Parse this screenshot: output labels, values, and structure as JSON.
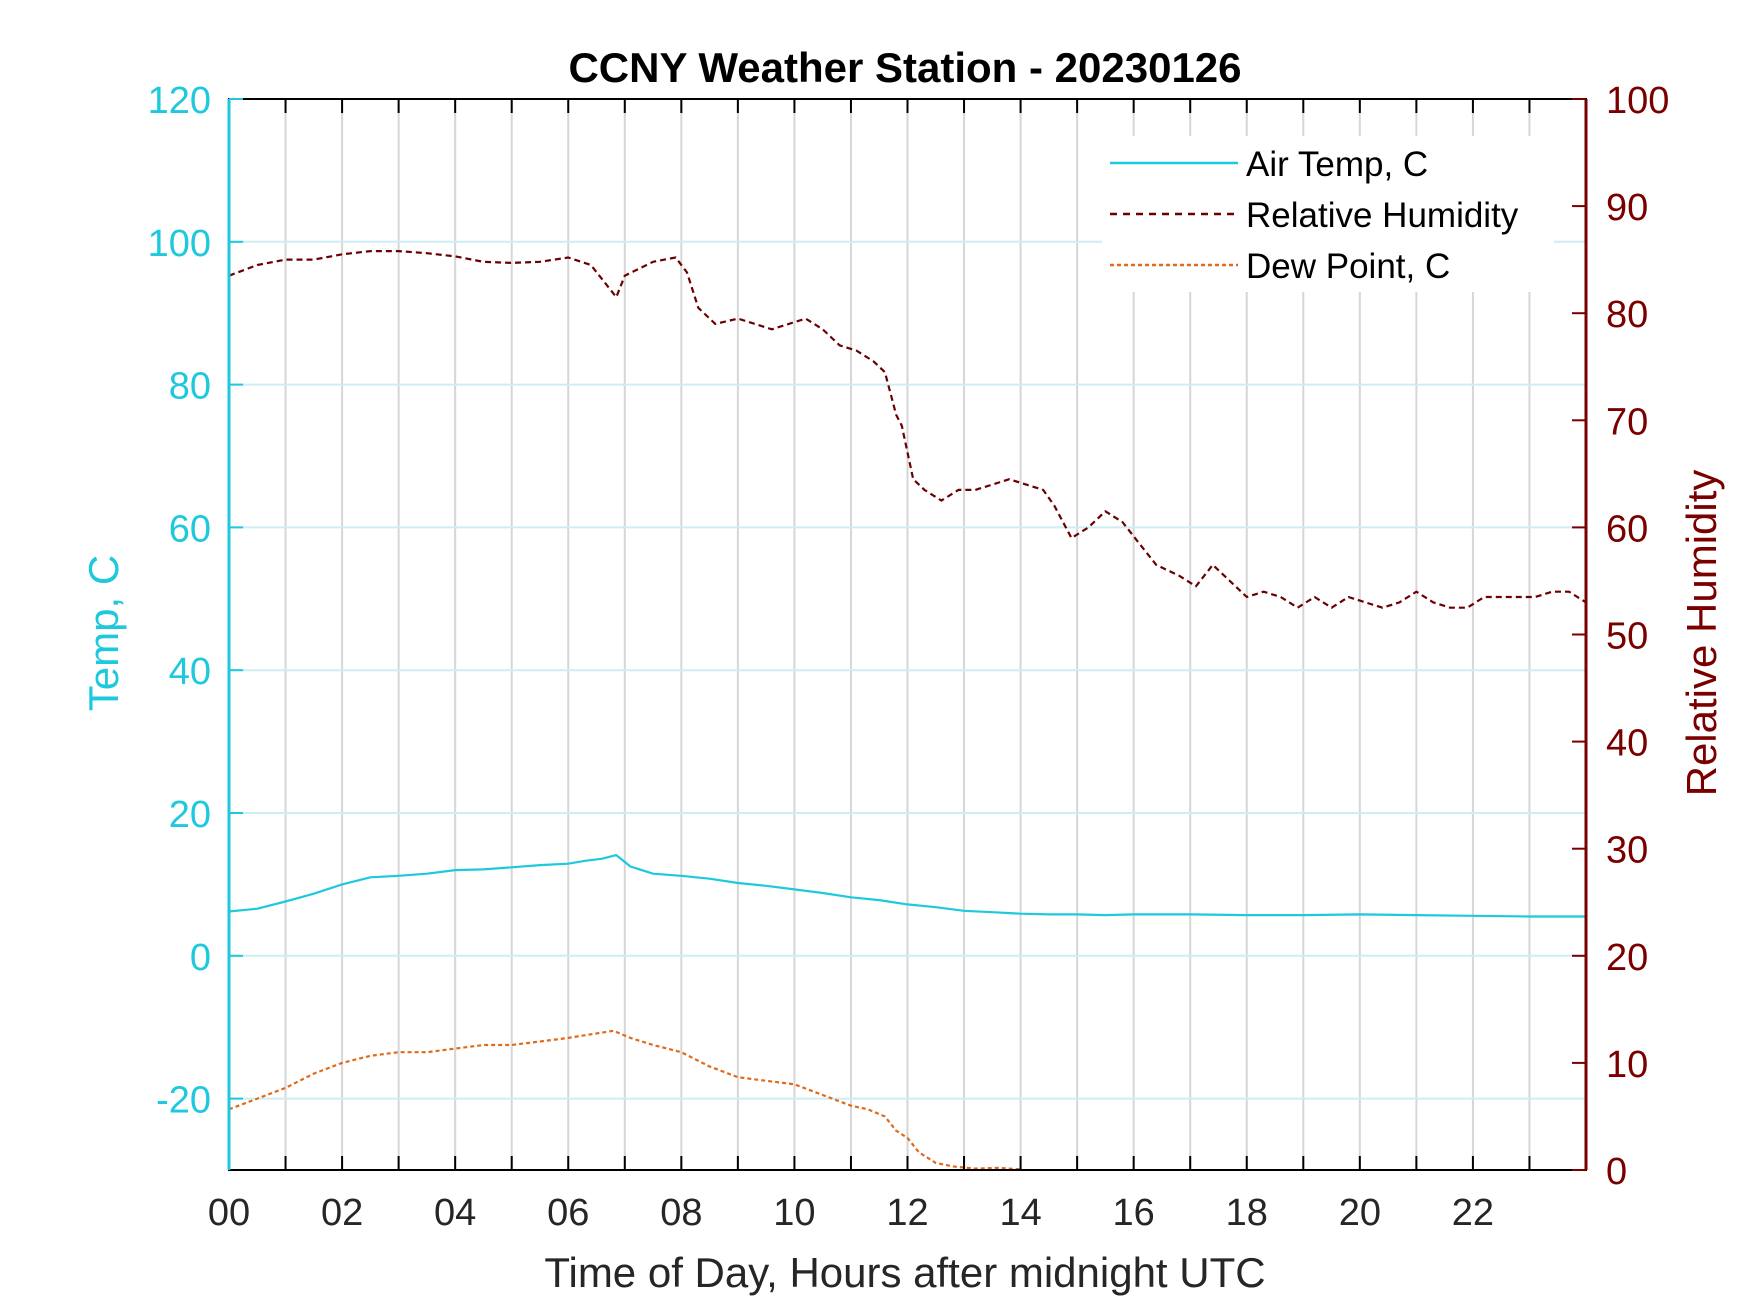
{
  "chart_data": {
    "type": "line",
    "title": "CCNY Weather Station - 20230126",
    "xlabel": "Time of Day, Hours after midnight UTC",
    "ylabel_left": "Temp, C",
    "ylabel_right": "Relative Humidity",
    "xlim": [
      0,
      24
    ],
    "ylim_left": [
      -30,
      120
    ],
    "ylim_right": [
      0,
      100
    ],
    "x_ticks": [
      0,
      2,
      4,
      6,
      8,
      10,
      12,
      14,
      16,
      18,
      20,
      22
    ],
    "x_tick_labels": [
      "00",
      "02",
      "04",
      "06",
      "08",
      "10",
      "12",
      "14",
      "16",
      "18",
      "20",
      "22"
    ],
    "y_left_ticks": [
      120,
      100,
      80,
      60,
      40,
      20,
      0,
      -20
    ],
    "y_right_ticks": [
      100,
      90,
      80,
      70,
      60,
      50,
      40,
      30,
      20,
      10,
      0
    ],
    "grid": true,
    "legend_position": "top-right",
    "colors": {
      "temp": "#1ec8dd",
      "rh": "#6b0000",
      "dew": "#e06a1a",
      "axis_left": "#1ec8dd",
      "axis_right": "#7a0000"
    },
    "series": [
      {
        "name": "Air Temp, C",
        "axis": "left",
        "style": "solid",
        "x": [
          0,
          0.5,
          1,
          1.5,
          2,
          2.5,
          3,
          3.5,
          4,
          4.5,
          5,
          5.5,
          6,
          6.3,
          6.6,
          6.85,
          7.1,
          7.5,
          8,
          8.5,
          9,
          9.5,
          10,
          10.5,
          11,
          11.5,
          12,
          12.5,
          13,
          13.5,
          14,
          14.5,
          15,
          15.5,
          16,
          17,
          18,
          19,
          20,
          21,
          22,
          23,
          24
        ],
        "values": [
          6.2,
          6.6,
          7.6,
          8.7,
          10,
          11,
          11.2,
          11.5,
          12,
          12.1,
          12.4,
          12.7,
          12.9,
          13.3,
          13.6,
          14.1,
          12.5,
          11.5,
          11.2,
          10.8,
          10.2,
          9.8,
          9.3,
          8.8,
          8.2,
          7.8,
          7.2,
          6.8,
          6.3,
          6.1,
          5.9,
          5.8,
          5.8,
          5.7,
          5.8,
          5.8,
          5.7,
          5.7,
          5.8,
          5.7,
          5.6,
          5.5,
          5.5
        ]
      },
      {
        "name": "Relative Humidity",
        "axis": "right",
        "style": "dashed",
        "x": [
          0,
          0.5,
          1,
          1.5,
          2,
          2.5,
          3,
          3.5,
          4,
          4.5,
          5,
          5.5,
          6,
          6.4,
          6.7,
          6.85,
          7.0,
          7.5,
          7.9,
          8.1,
          8.3,
          8.6,
          9.0,
          9.3,
          9.6,
          9.9,
          10.2,
          10.5,
          10.8,
          11.1,
          11.4,
          11.6,
          11.8,
          11.9,
          12.1,
          12.3,
          12.6,
          12.9,
          13.2,
          13.5,
          13.8,
          14.1,
          14.4,
          14.6,
          14.9,
          15.2,
          15.5,
          15.8,
          16.1,
          16.4,
          16.8,
          17.1,
          17.4,
          17.7,
          18.0,
          18.3,
          18.6,
          18.9,
          19.2,
          19.5,
          19.8,
          20.1,
          20.4,
          20.7,
          21.0,
          21.3,
          21.6,
          21.9,
          22.2,
          22.5,
          22.8,
          23.1,
          23.4,
          23.7,
          24.0
        ],
        "values": [
          83.5,
          84.5,
          85,
          85,
          85.5,
          85.8,
          85.8,
          85.6,
          85.3,
          84.8,
          84.7,
          84.8,
          85.2,
          84.5,
          82.5,
          81.5,
          83.5,
          84.8,
          85.2,
          83.8,
          80.5,
          79,
          79.5,
          79,
          78.5,
          79,
          79.5,
          78.5,
          77,
          76.5,
          75.5,
          74.5,
          70.5,
          69.5,
          64.5,
          63.5,
          62.5,
          63.5,
          63.5,
          64,
          64.5,
          64,
          63.5,
          62,
          59,
          60,
          61.5,
          60.5,
          58.5,
          56.5,
          55.5,
          54.5,
          56.5,
          55,
          53.5,
          54,
          53.5,
          52.5,
          53.5,
          52.5,
          53.5,
          53,
          52.5,
          53,
          54,
          53,
          52.5,
          52.5,
          53.5,
          53.5,
          53.5,
          53.5,
          54,
          54,
          53
        ]
      },
      {
        "name": "Dew Point, C",
        "axis": "left",
        "style": "dashed",
        "x": [
          0,
          0.5,
          1,
          1.5,
          2,
          2.5,
          3,
          3.5,
          4,
          4.5,
          5,
          5.5,
          6,
          6.4,
          6.8,
          7.1,
          7.5,
          8.0,
          8.5,
          9.0,
          9.5,
          10.0,
          10.5,
          11.0,
          11.3,
          11.6,
          11.8,
          12.0,
          12.2,
          12.5,
          12.8,
          13.2,
          13.6,
          14.0
        ],
        "values": [
          -21.5,
          -20,
          -18.5,
          -16.5,
          -15,
          -14,
          -13.5,
          -13.5,
          -13,
          -12.5,
          -12.5,
          -12,
          -11.5,
          -11,
          -10.5,
          -11.5,
          -12.5,
          -13.5,
          -15.5,
          -17,
          -17.5,
          -18,
          -19.5,
          -21,
          -21.5,
          -22.5,
          -24.5,
          -25.5,
          -27.5,
          -29,
          -29.5,
          -29.8,
          -29.7,
          -29.9
        ]
      }
    ]
  }
}
